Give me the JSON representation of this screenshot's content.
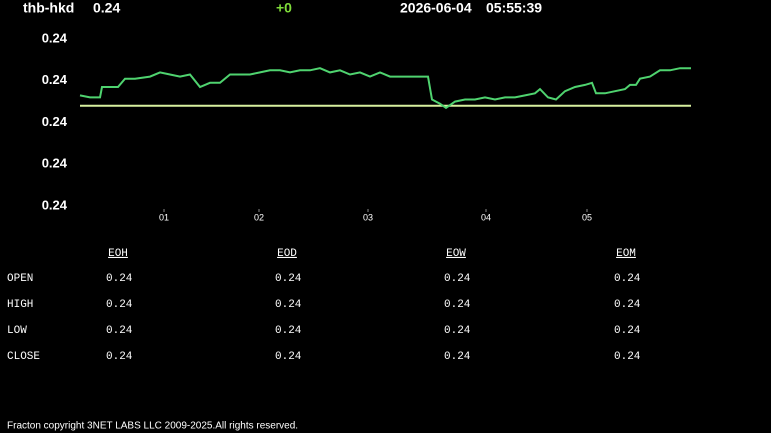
{
  "header": {
    "symbol": "thb-hkd",
    "price": 0.24,
    "change": "+0",
    "date": "2026-06-04",
    "time": "05:55:39"
  },
  "chart_data": {
    "type": "line",
    "color": "#4fd36f",
    "x": [
      0,
      10,
      20,
      22,
      30,
      38,
      45,
      55,
      70,
      80,
      90,
      100,
      110,
      120,
      130,
      140,
      150,
      160,
      170,
      180,
      190,
      200,
      210,
      220,
      230,
      240,
      250,
      260,
      270,
      280,
      290,
      300,
      310,
      320,
      330,
      340,
      348,
      352,
      360,
      366,
      375,
      385,
      395,
      405,
      415,
      425,
      435,
      445,
      455,
      460,
      468,
      476,
      485,
      495,
      505,
      512,
      516,
      525,
      535,
      545,
      550,
      556,
      560,
      570,
      580,
      590,
      600,
      611
    ],
    "values": [
      0.24053,
      0.24052,
      0.24052,
      0.24057,
      0.24057,
      0.24057,
      0.24061,
      0.24061,
      0.24062,
      0.24064,
      0.24063,
      0.24062,
      0.24063,
      0.24057,
      0.24059,
      0.24059,
      0.24063,
      0.24063,
      0.24063,
      0.24064,
      0.24065,
      0.24065,
      0.24064,
      0.24065,
      0.24065,
      0.24066,
      0.24064,
      0.24065,
      0.24063,
      0.24064,
      0.24062,
      0.24064,
      0.24062,
      0.24062,
      0.24062,
      0.24062,
      0.24062,
      0.24051,
      0.24049,
      0.24047,
      0.2405,
      0.24051,
      0.24051,
      0.24052,
      0.24051,
      0.24052,
      0.24052,
      0.24053,
      0.24054,
      0.24056,
      0.24052,
      0.24051,
      0.24055,
      0.24057,
      0.24058,
      0.24059,
      0.24054,
      0.24054,
      0.24055,
      0.24056,
      0.24058,
      0.24058,
      0.24061,
      0.24062,
      0.24065,
      0.24065,
      0.24066,
      0.24066
    ],
    "reference_line": {
      "value": 0.24048,
      "color": "#d8f0a0"
    },
    "xlim": [
      0,
      611
    ],
    "xticks": [
      {
        "value": 84,
        "label": "01"
      },
      {
        "value": 179,
        "label": "02"
      },
      {
        "value": 288,
        "label": "03"
      },
      {
        "value": 406,
        "label": "04"
      },
      {
        "value": 507,
        "label": "05"
      }
    ],
    "ylim": [
      0.24,
      0.2408
    ],
    "yticks": [
      {
        "value": 0.2408,
        "label": "0.24"
      },
      {
        "value": 0.2406,
        "label": "0.24"
      },
      {
        "value": 0.2404,
        "label": "0.24"
      },
      {
        "value": 0.2402,
        "label": "0.24"
      },
      {
        "value": 0.24,
        "label": "0.24"
      }
    ]
  },
  "table": {
    "columns": [
      "EOH",
      "EOD",
      "EOW",
      "EOM"
    ],
    "rows": [
      {
        "label": "OPEN",
        "values": [
          0.24,
          0.24,
          0.24,
          0.24
        ]
      },
      {
        "label": "HIGH",
        "values": [
          0.24,
          0.24,
          0.24,
          0.24
        ]
      },
      {
        "label": "LOW",
        "values": [
          0.24,
          0.24,
          0.24,
          0.24
        ]
      },
      {
        "label": "CLOSE",
        "values": [
          0.24,
          0.24,
          0.24,
          0.24
        ]
      }
    ]
  },
  "footer": "Fracton copyright 3NET LABS LLC 2009-2025.All rights reserved."
}
